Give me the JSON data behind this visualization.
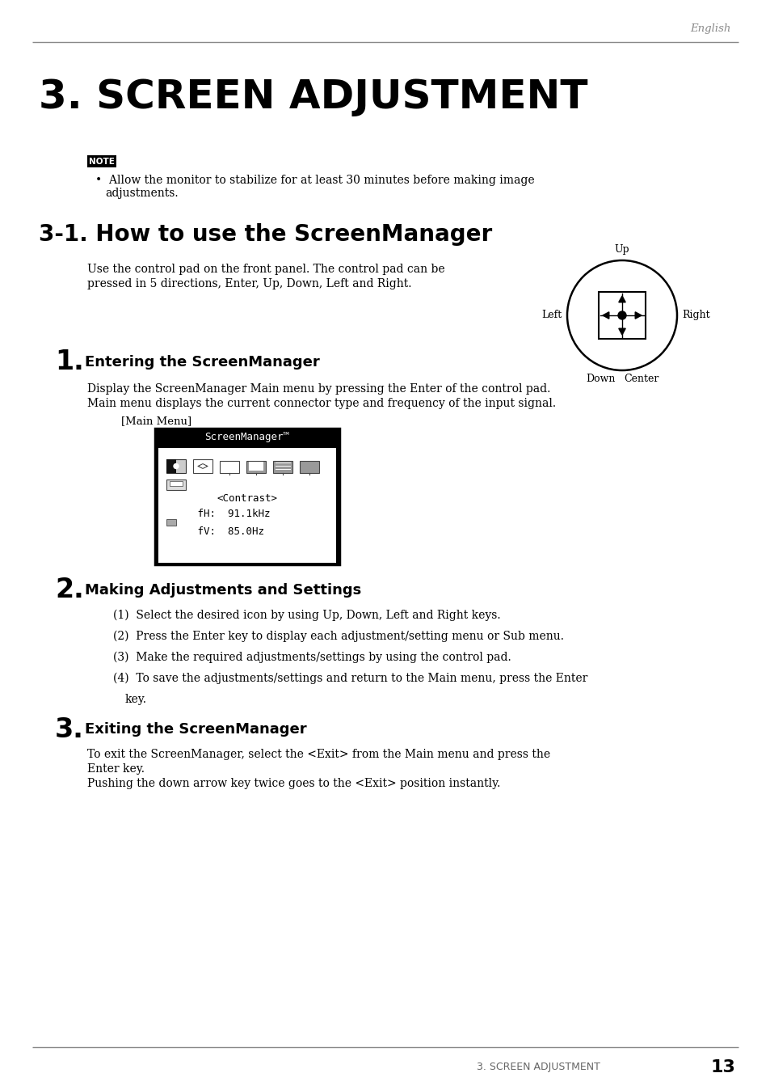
{
  "bg_color": "#ffffff",
  "top_line_color": "#888888",
  "header_text": "English",
  "header_color": "#888888",
  "main_title": "3. SCREEN ADJUSTMENT",
  "section_title": "3-1. How to use the ScreenManager",
  "note_label": "NOTE",
  "note_text": "Allow the monitor to stabilize for at least 30 minutes before making image\nadjustments.",
  "intro_text": "Use the control pad on the front panel. The control pad can be\npressed in 5 directions, Enter, Up, Down, Left and Right.",
  "step1_num": "1.",
  "step1_title": "Entering the ScreenManager",
  "step1_text1": "Display the ScreenManager Main menu by pressing the Enter of the control pad.",
  "step1_text2": "Main menu displays the current connector type and frequency of the input signal.",
  "main_menu_label": "[Main Menu]",
  "screen_title": "ScreenManager™",
  "screen_line1": "<Contrast>",
  "screen_line2": "   fH:  91.1kHz",
  "screen_line3": "   fV:  85.0Hz",
  "step2_num": "2.",
  "step2_title": "Making Adjustments and Settings",
  "step2_items": [
    "(1)  Select the desired icon by using Up, Down, Left and Right keys.",
    "(2)  Press the Enter key to display each adjustment/setting menu or Sub menu.",
    "(3)  Make the required adjustments/settings by using the control pad.",
    "(4)  To save the adjustments/settings and return to the Main menu, press the Enter\n        key."
  ],
  "step3_num": "3.",
  "step3_title": "Exiting the ScreenManager",
  "step3_text1": "To exit the ScreenManager, select the <Exit> from the Main menu and press the\nEnter key.",
  "step3_text2": "Pushing the down arrow key twice goes to the <Exit> position instantly.",
  "footer_section": "3. SCREEN ADJUSTMENT",
  "footer_page": "13"
}
